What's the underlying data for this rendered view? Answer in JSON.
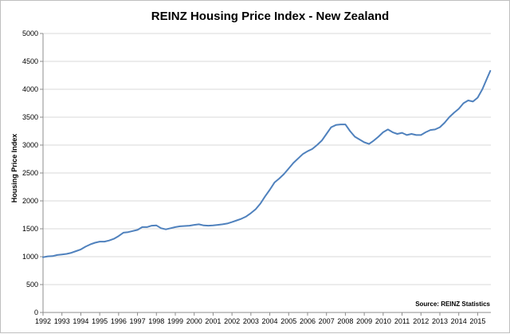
{
  "chart_data": {
    "type": "line",
    "title": "REINZ Housing Price Index - New Zealand",
    "xlabel": "",
    "ylabel": "Housing Price Index",
    "source": "Source: REINZ Statistics",
    "grid": true,
    "legend": "none",
    "ylim": [
      0,
      5000
    ],
    "yticks": [
      0,
      500,
      1000,
      1500,
      2000,
      2500,
      3000,
      3500,
      4000,
      4500,
      5000
    ],
    "xlim": [
      1992,
      2015.7
    ],
    "xticks": [
      1992,
      1993,
      1994,
      1995,
      1996,
      1997,
      1998,
      1999,
      2000,
      2001,
      2002,
      2003,
      2004,
      2005,
      2006,
      2007,
      2008,
      2009,
      2010,
      2011,
      2012,
      2013,
      2014,
      2015
    ],
    "colors": {
      "line": "#4f81bd",
      "grid": "#d9d9d9",
      "axis": "#8c8c8c"
    },
    "series": [
      {
        "name": "Housing Price Index",
        "x": [
          1992.0,
          1992.25,
          1992.5,
          1992.75,
          1993.0,
          1993.25,
          1993.5,
          1993.75,
          1994.0,
          1994.25,
          1994.5,
          1994.75,
          1995.0,
          1995.25,
          1995.5,
          1995.75,
          1996.0,
          1996.25,
          1996.5,
          1996.75,
          1997.0,
          1997.25,
          1997.5,
          1997.75,
          1998.0,
          1998.25,
          1998.5,
          1998.75,
          1999.0,
          1999.25,
          1999.5,
          1999.75,
          2000.0,
          2000.25,
          2000.5,
          2000.75,
          2001.0,
          2001.25,
          2001.5,
          2001.75,
          2002.0,
          2002.25,
          2002.5,
          2002.75,
          2003.0,
          2003.25,
          2003.5,
          2003.75,
          2004.0,
          2004.25,
          2004.5,
          2004.75,
          2005.0,
          2005.25,
          2005.5,
          2005.75,
          2006.0,
          2006.25,
          2006.5,
          2006.75,
          2007.0,
          2007.25,
          2007.5,
          2007.75,
          2008.0,
          2008.25,
          2008.5,
          2008.75,
          2009.0,
          2009.25,
          2009.5,
          2009.75,
          2010.0,
          2010.25,
          2010.5,
          2010.75,
          2011.0,
          2011.25,
          2011.5,
          2011.75,
          2012.0,
          2012.25,
          2012.5,
          2012.75,
          2013.0,
          2013.25,
          2013.5,
          2013.75,
          2014.0,
          2014.25,
          2014.5,
          2014.75,
          2015.0,
          2015.25,
          2015.5,
          2015.67
        ],
        "values": [
          990,
          1005,
          1010,
          1030,
          1040,
          1050,
          1070,
          1100,
          1130,
          1180,
          1220,
          1250,
          1270,
          1270,
          1290,
          1320,
          1370,
          1430,
          1440,
          1460,
          1480,
          1530,
          1530,
          1555,
          1560,
          1510,
          1490,
          1510,
          1530,
          1545,
          1550,
          1555,
          1570,
          1580,
          1560,
          1555,
          1560,
          1570,
          1580,
          1595,
          1620,
          1650,
          1680,
          1720,
          1780,
          1850,
          1950,
          2080,
          2200,
          2330,
          2400,
          2480,
          2580,
          2680,
          2760,
          2840,
          2890,
          2930,
          3000,
          3080,
          3200,
          3320,
          3360,
          3370,
          3370,
          3250,
          3150,
          3100,
          3050,
          3020,
          3080,
          3150,
          3230,
          3280,
          3230,
          3200,
          3220,
          3180,
          3200,
          3180,
          3180,
          3230,
          3270,
          3280,
          3320,
          3400,
          3500,
          3580,
          3650,
          3750,
          3800,
          3780,
          3850,
          4000,
          4200,
          4330
        ]
      }
    ]
  }
}
